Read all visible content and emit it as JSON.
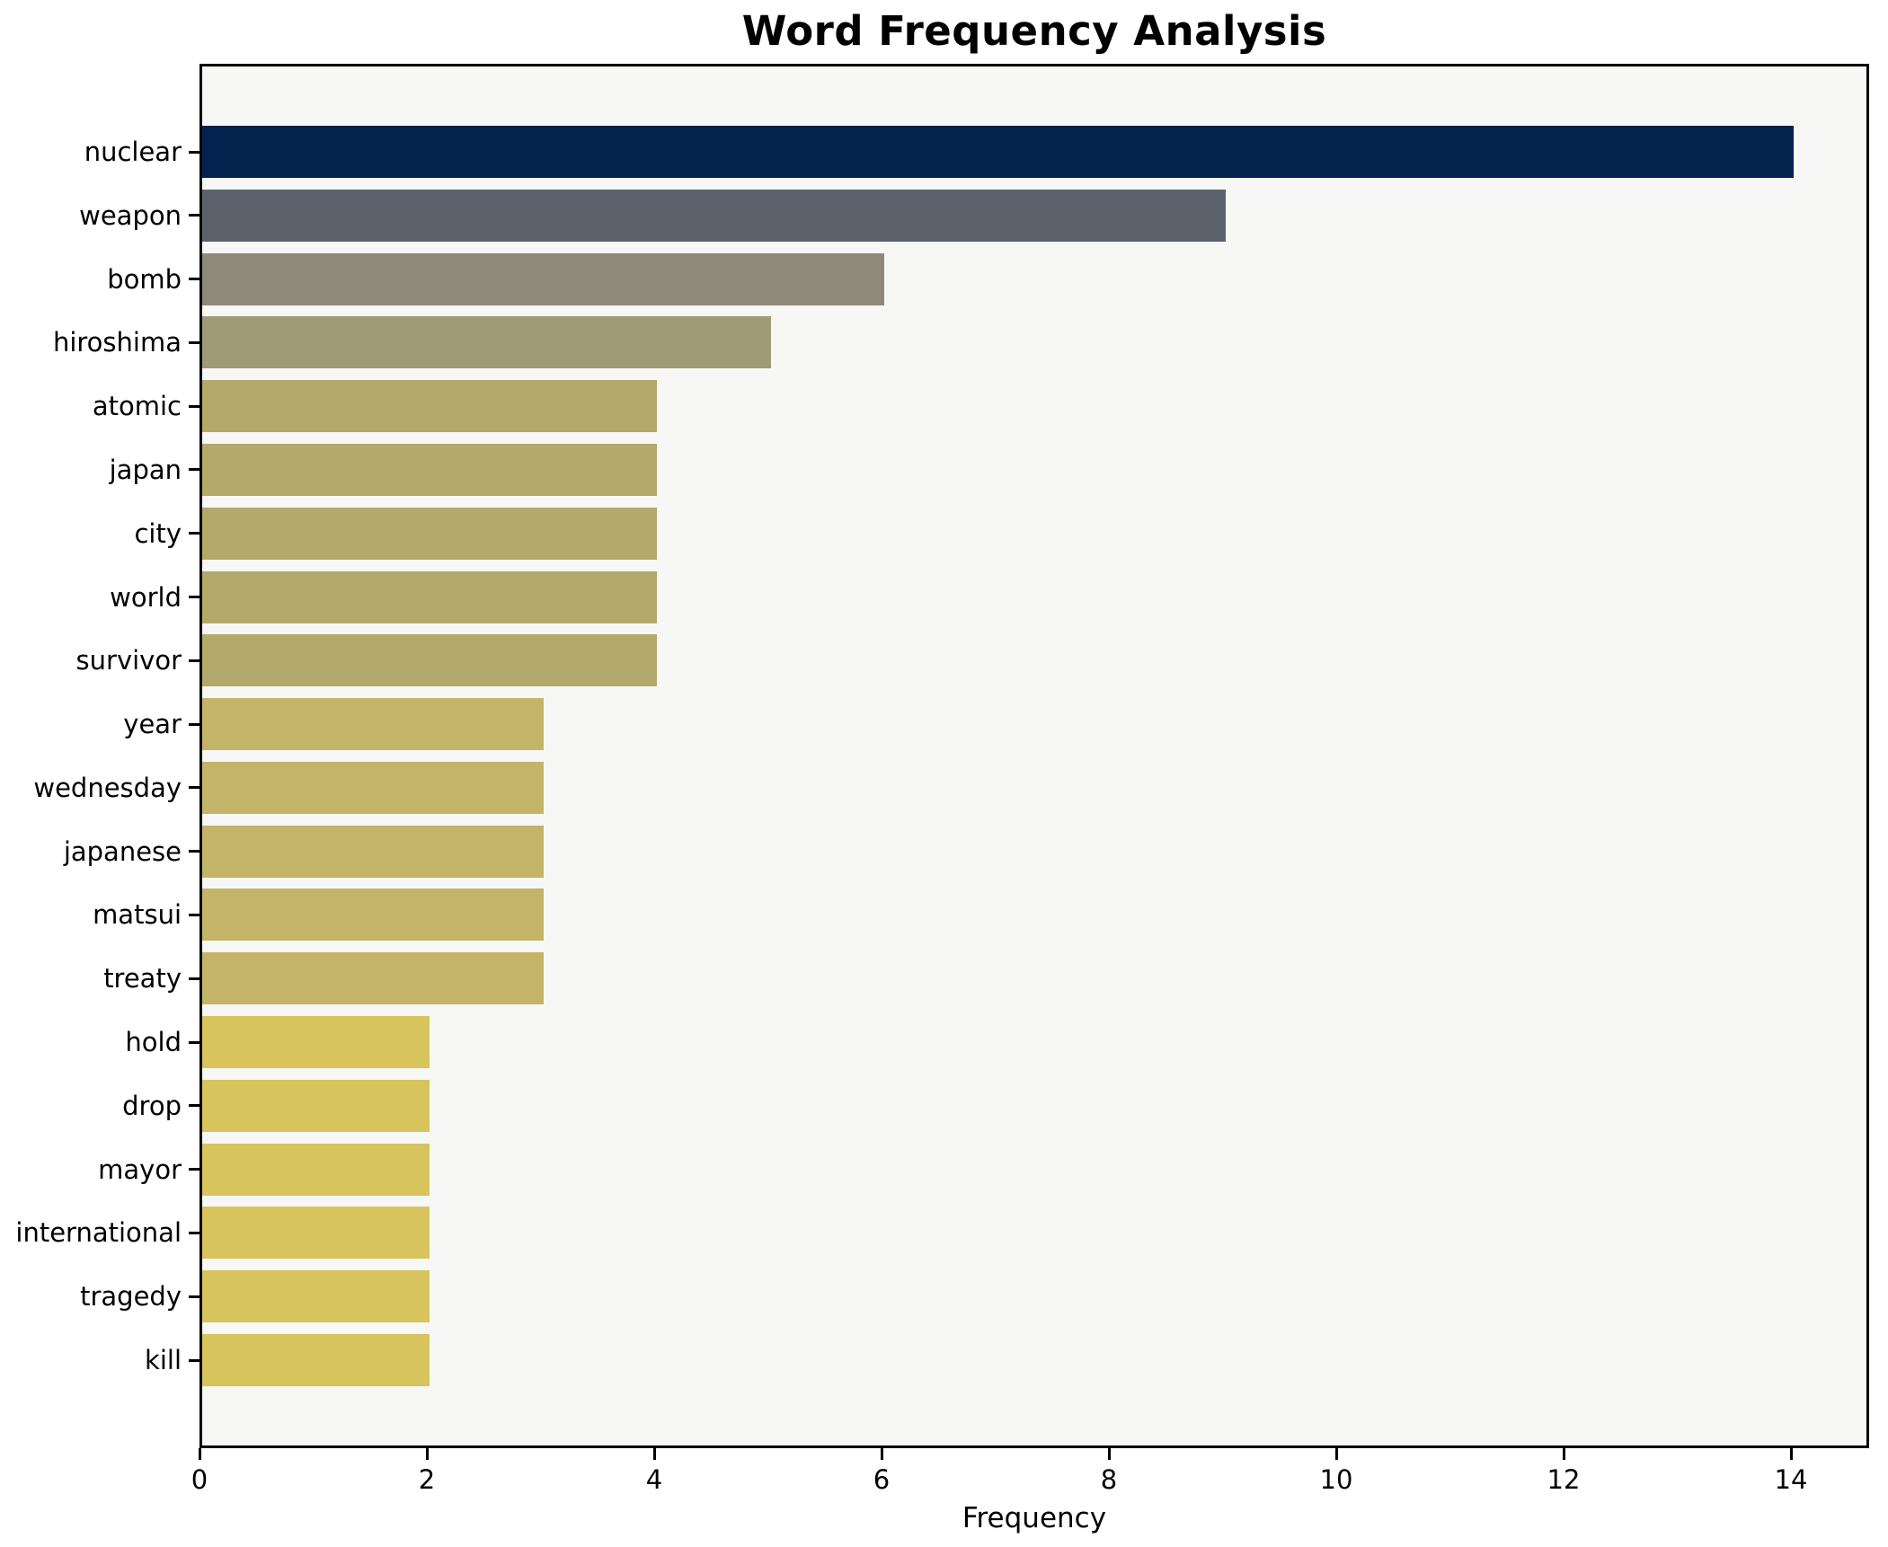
{
  "title": "Word Frequency Analysis",
  "chart_data": {
    "type": "bar",
    "orientation": "horizontal",
    "title": "Word Frequency Analysis",
    "xlabel": "Frequency",
    "ylabel": "",
    "categories": [
      "nuclear",
      "weapon",
      "bomb",
      "hiroshima",
      "atomic",
      "japan",
      "city",
      "world",
      "survivor",
      "year",
      "wednesday",
      "japanese",
      "matsui",
      "treaty",
      "hold",
      "drop",
      "mayor",
      "international",
      "tragedy",
      "kill"
    ],
    "values": [
      14,
      9,
      6,
      5,
      4,
      4,
      4,
      4,
      4,
      3,
      3,
      3,
      3,
      3,
      2,
      2,
      2,
      2,
      2,
      2
    ],
    "bar_colors": [
      "#03234e",
      "#5c626c",
      "#8e897a",
      "#a19a76",
      "#b2a96b",
      "#b2a96b",
      "#b2a96b",
      "#b2a96b",
      "#b2a96b",
      "#c4b469",
      "#c4b469",
      "#c4b469",
      "#c4b469",
      "#c4b469",
      "#d8c45c",
      "#d8c45c",
      "#d8c45c",
      "#d8c45c",
      "#d8c45c",
      "#d8c45c"
    ],
    "x_ticks": [
      0,
      2,
      4,
      6,
      8,
      10,
      12,
      14
    ],
    "xlim": [
      0,
      14.69
    ],
    "grid": false,
    "legend": "none",
    "plot_background": "#f7f7f5",
    "figure_background": "#ffffff",
    "spine_color": "#000000",
    "text_color": "#000000"
  }
}
